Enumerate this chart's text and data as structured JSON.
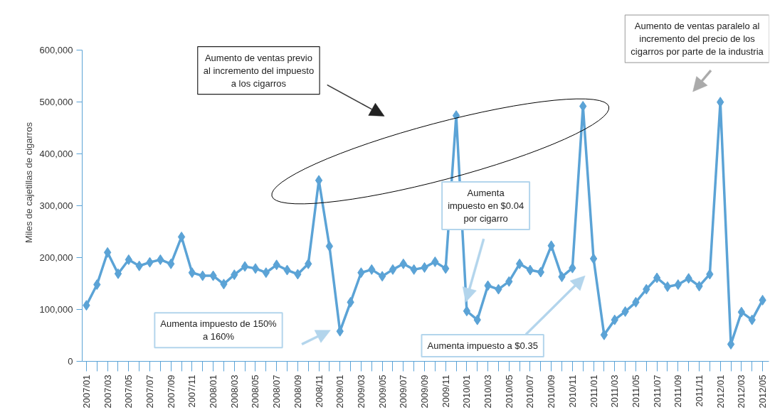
{
  "chart_data": {
    "type": "line",
    "ylabel": "Miles de cajetillas de cigarros",
    "categories": [
      "2007/01",
      null,
      "2007/03",
      null,
      "2007/05",
      null,
      "2007/07",
      null,
      "2007/09",
      null,
      "2007/11",
      null,
      "2008/01",
      null,
      "2008/03",
      null,
      "2008/05",
      null,
      "2008/07",
      null,
      "2008/09",
      null,
      "2008/11",
      null,
      "2009/01",
      null,
      "2009/03",
      null,
      "2009/05",
      null,
      "2009/07",
      null,
      "2009/09",
      null,
      "2009/11",
      null,
      "2010/01",
      null,
      "2010/03",
      null,
      "2010/05",
      null,
      "2010/07",
      null,
      "2010/09",
      null,
      "2010/11",
      null,
      "2011/01",
      null,
      "2011/03",
      null,
      "2011/05",
      null,
      "2011/07",
      null,
      "2011/09",
      null,
      "2011/11",
      null,
      "2012/01",
      null,
      "2012/03",
      null,
      "2012/05"
    ],
    "series": [
      {
        "color": "#5ba3d6",
        "values": [
          108000,
          148000,
          210000,
          169000,
          196000,
          184000,
          191000,
          196000,
          188000,
          240000,
          171000,
          165000,
          165000,
          149000,
          167000,
          183000,
          179000,
          171000,
          186000,
          176000,
          168000,
          188000,
          349000,
          222000,
          58000,
          114000,
          171000,
          177000,
          164000,
          177000,
          188000,
          177000,
          181000,
          192000,
          179000,
          474000,
          97000,
          80000,
          146000,
          139000,
          154000,
          188000,
          176000,
          172000,
          223000,
          163000,
          180000,
          492000,
          198000,
          51000,
          80000,
          96000,
          114000,
          139000,
          161000,
          144000,
          148000,
          160000,
          145000,
          168000,
          500000,
          33000,
          95000,
          80000,
          118000
        ]
      }
    ],
    "ylim": [
      0,
      600000
    ],
    "yticks": [
      {
        "value": 0,
        "label": "0"
      },
      {
        "value": 100000,
        "label": "100,000"
      },
      {
        "value": 200000,
        "label": "200,000"
      },
      {
        "value": 300000,
        "label": "300,000"
      },
      {
        "value": 400000,
        "label": "400,000"
      },
      {
        "value": 500000,
        "label": "500,000"
      },
      {
        "value": 600000,
        "label": "600,000"
      }
    ],
    "marker": "diamond",
    "line_style": "solid",
    "grid": false,
    "annotations": [
      "Aumento de ventas previo\nal incremento del impuesto\na los cigarros",
      "Aumento de ventas paralelo al\nincremento del precio de los\ncigarros por parte de la industria",
      "Aumenta impuesto de 150%\na 160%",
      "Aumenta\nimpuesto en $0.04\npor cigarro",
      "Aumenta impuesto a $0.35"
    ]
  }
}
